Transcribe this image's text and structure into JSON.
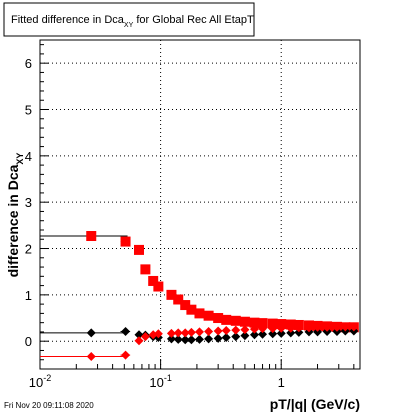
{
  "canvas": {
    "title_main": "Fitted difference in Dca",
    "title_sub": "XY",
    "title_tail": " for Global Rec All EtapT",
    "timestamp": "Fri Nov 20 09:11:08 2020"
  },
  "chart_data": {
    "type": "scatter",
    "title": "Fitted difference in DcaXY for Global Rec All EtapT",
    "xlabel": "pT/|q| (GeV/c)",
    "ylabel_main": "difference in Dca",
    "ylabel_sub": "XY",
    "xscale": "log",
    "xlim": [
      0.01,
      4.5
    ],
    "ylim": [
      -0.6,
      6.5
    ],
    "grid": true,
    "x_tick_labels": [
      {
        "value": 0.01,
        "label": "10",
        "exp": "-2"
      },
      {
        "value": 0.1,
        "label": "10",
        "exp": "-1"
      },
      {
        "value": 1,
        "label": "1",
        "exp": ""
      }
    ],
    "y_ticks": [
      0,
      1,
      2,
      3,
      4,
      5,
      6
    ],
    "series": [
      {
        "marker": "square",
        "color": "#ff0000",
        "hline_color": "#000000",
        "x": [
          0.0266,
          0.0512,
          0.0662,
          0.0748,
          0.0868,
          0.0958,
          0.123,
          0.14,
          0.16,
          0.18,
          0.21,
          0.25,
          0.3,
          0.35,
          0.42,
          0.5,
          0.6,
          0.7,
          0.85,
          1.0,
          1.2,
          1.4,
          1.7,
          2.0,
          2.4,
          2.9,
          3.4,
          4.0
        ],
        "y": [
          2.27,
          2.15,
          1.97,
          1.55,
          1.3,
          1.18,
          1.0,
          0.9,
          0.78,
          0.68,
          0.6,
          0.55,
          0.5,
          0.46,
          0.44,
          0.42,
          0.4,
          0.39,
          0.38,
          0.37,
          0.36,
          0.35,
          0.34,
          0.33,
          0.32,
          0.31,
          0.3,
          0.3
        ],
        "xerr_lo": [
          0.0266,
          0.0047,
          0.0037,
          0.0037,
          0.0043,
          0.0048,
          0.006,
          0.007,
          0.008,
          0.009,
          0.01,
          0.012,
          0.015,
          0.018,
          0.021,
          0.025,
          0.03,
          0.035,
          0.042,
          0.05,
          0.06,
          0.07,
          0.085,
          0.1,
          0.12,
          0.145,
          0.17,
          0.2
        ],
        "xerr_hi": [
          0.0266,
          0.0047,
          0.0037,
          0.0037,
          0.0043,
          0.0048,
          0.006,
          0.007,
          0.008,
          0.009,
          0.01,
          0.012,
          0.015,
          0.018,
          0.021,
          0.025,
          0.03,
          0.035,
          0.042,
          0.05,
          0.06,
          0.07,
          0.085,
          0.1,
          0.12,
          0.145,
          0.17,
          0.2
        ]
      },
      {
        "marker": "diamond",
        "color": "#000000",
        "hline_color": "#000000",
        "x": [
          0.0266,
          0.0512,
          0.0662,
          0.0748,
          0.0868,
          0.0958,
          0.123,
          0.14,
          0.16,
          0.18,
          0.21,
          0.25,
          0.3,
          0.35,
          0.42,
          0.5,
          0.6,
          0.7,
          0.85,
          1.0,
          1.2,
          1.4,
          1.7,
          2.0,
          2.4,
          2.9,
          3.4,
          4.0
        ],
        "y": [
          0.18,
          0.21,
          0.14,
          0.13,
          0.1,
          0.08,
          0.05,
          0.04,
          0.03,
          0.03,
          0.04,
          0.05,
          0.06,
          0.08,
          0.1,
          0.12,
          0.14,
          0.15,
          0.16,
          0.17,
          0.18,
          0.19,
          0.2,
          0.2,
          0.21,
          0.21,
          0.22,
          0.22
        ],
        "xerr_lo": [
          0.0266,
          0.0047,
          0.0037,
          0.0037,
          0.0043,
          0.0048,
          0.006,
          0.007,
          0.008,
          0.009,
          0.01,
          0.012,
          0.015,
          0.018,
          0.021,
          0.025,
          0.03,
          0.035,
          0.042,
          0.05,
          0.06,
          0.07,
          0.085,
          0.1,
          0.12,
          0.145,
          0.17,
          0.2
        ],
        "xerr_hi": [
          0.0266,
          0.0047,
          0.0037,
          0.0037,
          0.0043,
          0.0048,
          0.006,
          0.007,
          0.008,
          0.009,
          0.01,
          0.012,
          0.015,
          0.018,
          0.021,
          0.025,
          0.03,
          0.035,
          0.042,
          0.05,
          0.06,
          0.07,
          0.085,
          0.1,
          0.12,
          0.145,
          0.17,
          0.2
        ]
      },
      {
        "marker": "diamond",
        "color": "#ff0000",
        "hline_color": "#ff0000",
        "x": [
          0.0266,
          0.0512,
          0.0662,
          0.0748,
          0.0868,
          0.0958,
          0.123,
          0.14,
          0.16,
          0.18,
          0.21,
          0.25,
          0.3,
          0.35,
          0.42,
          0.5,
          0.6,
          0.7,
          0.85,
          1.0,
          1.2,
          1.4,
          1.7,
          2.0,
          2.4,
          2.9,
          3.4,
          4.0
        ],
        "y": [
          -0.33,
          -0.3,
          0.01,
          0.1,
          0.14,
          0.16,
          0.17,
          0.18,
          0.18,
          0.19,
          0.2,
          0.21,
          0.22,
          0.23,
          0.24,
          0.25,
          0.26,
          0.27,
          0.27,
          0.28,
          0.28,
          0.29,
          0.29,
          0.3,
          0.3,
          0.3,
          0.31,
          0.31
        ],
        "xerr_lo": [
          0.0266,
          0.0047,
          0.0037,
          0.0037,
          0.0043,
          0.0048,
          0.006,
          0.007,
          0.008,
          0.009,
          0.01,
          0.012,
          0.015,
          0.018,
          0.021,
          0.025,
          0.03,
          0.035,
          0.042,
          0.05,
          0.06,
          0.07,
          0.085,
          0.1,
          0.12,
          0.145,
          0.17,
          0.2
        ],
        "xerr_hi": [
          0.0266,
          0.0047,
          0.0037,
          0.0037,
          0.0043,
          0.0048,
          0.006,
          0.007,
          0.008,
          0.009,
          0.01,
          0.012,
          0.015,
          0.018,
          0.021,
          0.025,
          0.03,
          0.035,
          0.042,
          0.05,
          0.06,
          0.07,
          0.085,
          0.1,
          0.12,
          0.145,
          0.17,
          0.2
        ]
      }
    ]
  }
}
